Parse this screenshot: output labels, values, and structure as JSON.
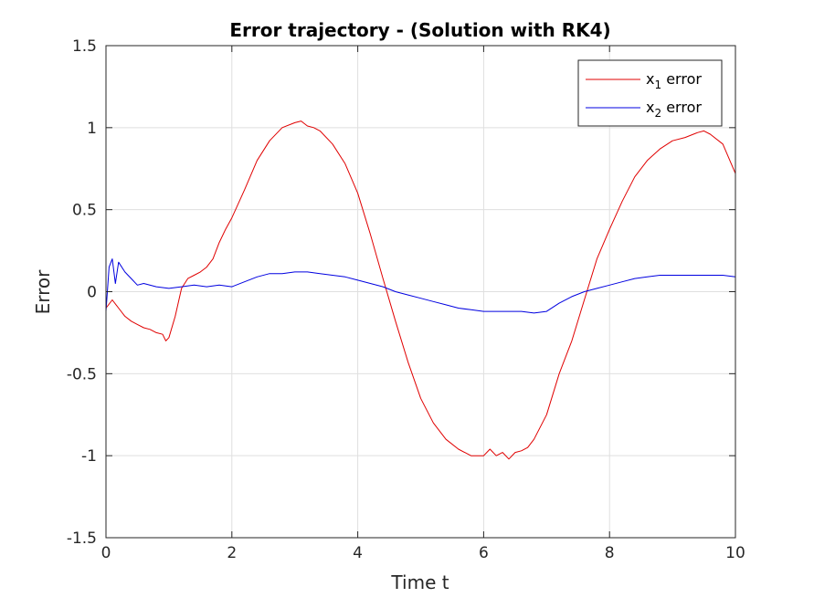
{
  "chart_data": {
    "type": "line",
    "title": "Error trajectory - (Solution with RK4)",
    "xlabel": "Time t",
    "ylabel": "Error",
    "xlim": [
      0,
      10
    ],
    "ylim": [
      -1.5,
      1.5
    ],
    "xticks": [
      0,
      2,
      4,
      6,
      8,
      10
    ],
    "yticks": [
      -1.5,
      -1,
      -0.5,
      0,
      0.5,
      1,
      1.5
    ],
    "xtick_labels": [
      "0",
      "2",
      "4",
      "6",
      "8",
      "10"
    ],
    "ytick_labels": [
      "-1.5",
      "-1",
      "-0.5",
      "0",
      "0.5",
      "1",
      "1.5"
    ],
    "grid": true,
    "legend_position": "top-right",
    "series": [
      {
        "name_main": "x",
        "name_sub": "1",
        "name_rest": " error",
        "color": "#e00000",
        "x": [
          0,
          0.1,
          0.2,
          0.3,
          0.4,
          0.5,
          0.6,
          0.7,
          0.8,
          0.9,
          0.95,
          1.0,
          1.1,
          1.2,
          1.3,
          1.4,
          1.5,
          1.6,
          1.7,
          1.8,
          1.9,
          2.0,
          2.2,
          2.4,
          2.6,
          2.8,
          3.0,
          3.1,
          3.2,
          3.3,
          3.4,
          3.6,
          3.8,
          4.0,
          4.2,
          4.4,
          4.6,
          4.8,
          5.0,
          5.2,
          5.4,
          5.6,
          5.8,
          6.0,
          6.1,
          6.2,
          6.3,
          6.4,
          6.5,
          6.6,
          6.7,
          6.8,
          7.0,
          7.2,
          7.4,
          7.6,
          7.8,
          8.0,
          8.2,
          8.4,
          8.6,
          8.8,
          9.0,
          9.2,
          9.4,
          9.5,
          9.6,
          9.8,
          10.0
        ],
        "y": [
          -0.1,
          -0.05,
          -0.1,
          -0.15,
          -0.18,
          -0.2,
          -0.22,
          -0.23,
          -0.25,
          -0.26,
          -0.3,
          -0.28,
          -0.15,
          0.02,
          0.08,
          0.1,
          0.12,
          0.15,
          0.2,
          0.3,
          0.38,
          0.45,
          0.62,
          0.8,
          0.92,
          1.0,
          1.03,
          1.04,
          1.01,
          1.0,
          0.98,
          0.9,
          0.78,
          0.6,
          0.35,
          0.08,
          -0.18,
          -0.43,
          -0.65,
          -0.8,
          -0.9,
          -0.96,
          -1.0,
          -1.0,
          -0.96,
          -1.0,
          -0.98,
          -1.02,
          -0.98,
          -0.97,
          -0.95,
          -0.9,
          -0.75,
          -0.5,
          -0.3,
          -0.05,
          0.2,
          0.38,
          0.55,
          0.7,
          0.8,
          0.87,
          0.92,
          0.94,
          0.97,
          0.98,
          0.96,
          0.9,
          0.72
        ]
      },
      {
        "name_main": "x",
        "name_sub": "2",
        "name_rest": " error",
        "color": "#0000e0",
        "x": [
          0,
          0.05,
          0.1,
          0.15,
          0.2,
          0.3,
          0.4,
          0.5,
          0.6,
          0.8,
          1.0,
          1.2,
          1.4,
          1.6,
          1.8,
          2.0,
          2.2,
          2.4,
          2.6,
          2.8,
          3.0,
          3.2,
          3.4,
          3.6,
          3.8,
          4.0,
          4.2,
          4.4,
          4.6,
          4.8,
          5.0,
          5.2,
          5.4,
          5.6,
          5.8,
          6.0,
          6.2,
          6.4,
          6.6,
          6.8,
          7.0,
          7.2,
          7.4,
          7.6,
          7.8,
          8.0,
          8.2,
          8.4,
          8.6,
          8.8,
          9.0,
          9.2,
          9.4,
          9.6,
          9.8,
          10.0
        ],
        "y": [
          -0.12,
          0.15,
          0.2,
          0.05,
          0.18,
          0.12,
          0.08,
          0.04,
          0.05,
          0.03,
          0.02,
          0.03,
          0.04,
          0.03,
          0.04,
          0.03,
          0.06,
          0.09,
          0.11,
          0.11,
          0.12,
          0.12,
          0.11,
          0.1,
          0.09,
          0.07,
          0.05,
          0.03,
          0.0,
          -0.02,
          -0.04,
          -0.06,
          -0.08,
          -0.1,
          -0.11,
          -0.12,
          -0.12,
          -0.12,
          -0.12,
          -0.13,
          -0.12,
          -0.07,
          -0.03,
          0.0,
          0.02,
          0.04,
          0.06,
          0.08,
          0.09,
          0.1,
          0.1,
          0.1,
          0.1,
          0.1,
          0.1,
          0.09
        ]
      }
    ]
  }
}
